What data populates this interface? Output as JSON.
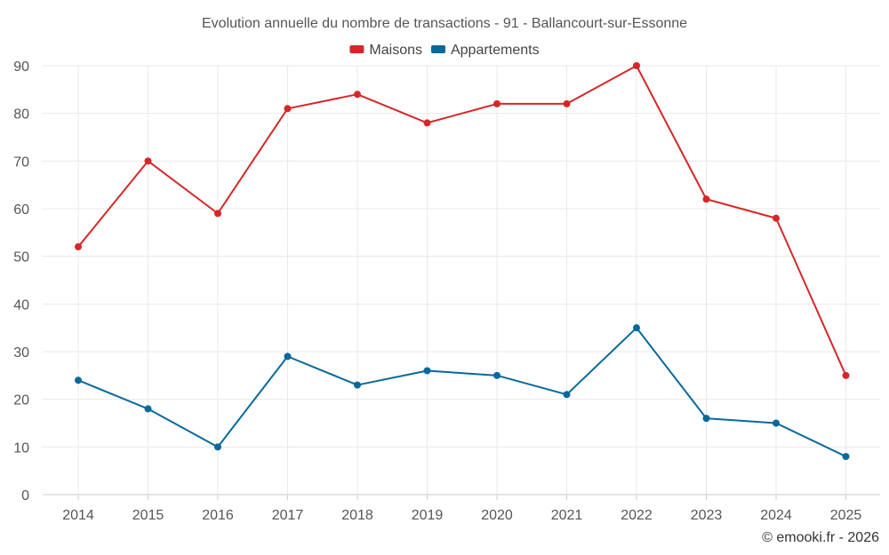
{
  "chart_data": {
    "type": "line",
    "title": "Evolution annuelle du nombre de transactions - 91 - Ballancourt-sur-Essonne",
    "categories": [
      "2014",
      "2015",
      "2016",
      "2017",
      "2018",
      "2019",
      "2020",
      "2021",
      "2022",
      "2023",
      "2024",
      "2025"
    ],
    "series": [
      {
        "name": "Maisons",
        "color": "#d62728",
        "values": [
          52,
          70,
          59,
          81,
          84,
          78,
          82,
          82,
          90,
          62,
          58,
          25
        ]
      },
      {
        "name": "Appartements",
        "color": "#08699b",
        "values": [
          24,
          18,
          10,
          29,
          23,
          26,
          25,
          21,
          35,
          16,
          15,
          8
        ]
      }
    ],
    "ylim": [
      0,
      90
    ],
    "yticks": [
      0,
      10,
      20,
      30,
      40,
      50,
      60,
      70,
      80,
      90
    ],
    "xlabel": "",
    "ylabel": "",
    "grid": true,
    "legend_position": "top-center"
  },
  "credit": "© emooki.fr - 2026"
}
